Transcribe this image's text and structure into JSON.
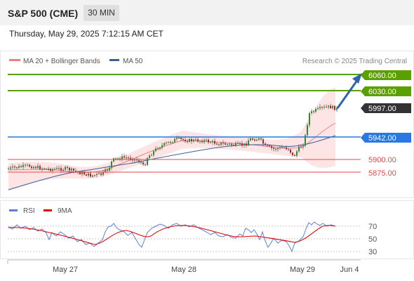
{
  "header": {
    "instrument": "S&P 500 (CME)",
    "timeframe": "30 MIN",
    "datetime": "Thursday, May 29, 2025 7:12:15 AM CET"
  },
  "legend": {
    "items": [
      {
        "label": "MA 20 + Bollinger Bands",
        "color": "#f08080"
      },
      {
        "label": "MA 50",
        "color": "#3a5f9a"
      }
    ],
    "copyright": "Research © 2025 Trading Central"
  },
  "levels": [
    {
      "value": "6060.00",
      "kind": "resistance",
      "color": "#5aa000"
    },
    {
      "value": "6030.00",
      "kind": "resistance",
      "color": "#5aa000"
    },
    {
      "value": "5997.00",
      "kind": "current",
      "color": "#333333"
    },
    {
      "value": "5942.00",
      "kind": "pivot",
      "color": "#2a78e4"
    },
    {
      "value": "5900.00",
      "kind": "support",
      "color": "#e24a4a"
    },
    {
      "value": "5875.00",
      "kind": "support",
      "color": "#e24a4a"
    }
  ],
  "rsi_panel": {
    "legend": [
      {
        "label": "RSI",
        "color": "#5b80d6"
      },
      {
        "label": "9MA",
        "color": "#e00000"
      }
    ],
    "axis": [
      "70",
      "50",
      "30"
    ]
  },
  "x_axis": {
    "labels": [
      "May 27",
      "May 28",
      "May 29",
      "Jun 4"
    ]
  },
  "colors": {
    "up": "#2e8b2e",
    "down": "#b22222",
    "band_fill": "#fde0e0",
    "ma20": "#f08080",
    "ma50": "#3a5f9a",
    "arrow": "#2f63ad"
  }
}
